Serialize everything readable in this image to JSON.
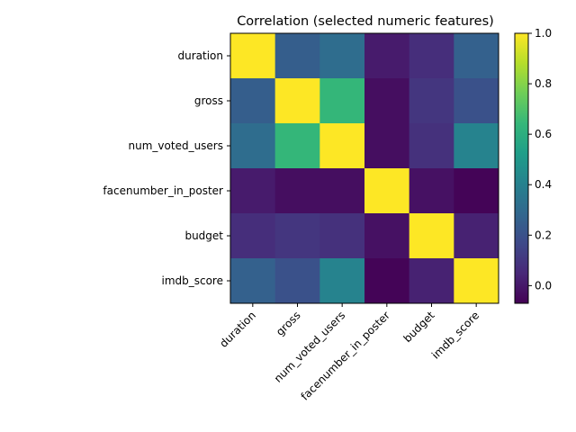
{
  "chart_data": {
    "type": "heatmap",
    "title": "Correlation (selected numeric features)",
    "x_labels": [
      "duration",
      "gross",
      "num_voted_users",
      "facenumber_in_poster",
      "budget",
      "imdb_score"
    ],
    "y_labels": [
      "duration",
      "gross",
      "num_voted_users",
      "facenumber_in_poster",
      "budget",
      "imdb_score"
    ],
    "values": [
      [
        1.0,
        0.25,
        0.31,
        0.01,
        0.07,
        0.26
      ],
      [
        0.25,
        1.0,
        0.64,
        -0.03,
        0.1,
        0.2
      ],
      [
        0.31,
        0.64,
        1.0,
        -0.03,
        0.08,
        0.41
      ],
      [
        0.01,
        -0.03,
        -0.03,
        1.0,
        -0.02,
        -0.06
      ],
      [
        0.07,
        0.1,
        0.08,
        -0.02,
        1.0,
        0.03
      ],
      [
        0.26,
        0.2,
        0.41,
        -0.06,
        0.03,
        1.0
      ]
    ],
    "colormap": "viridis",
    "vmin": -0.07,
    "vmax": 1.0,
    "colorbar": {
      "ticks": [
        1.0,
        0.8,
        0.6,
        0.4,
        0.2,
        0.0
      ],
      "tick_labels": [
        "1.0",
        "0.8",
        "0.6",
        "0.4",
        "0.2",
        "0.0"
      ],
      "placement": "right"
    },
    "grid": false
  }
}
